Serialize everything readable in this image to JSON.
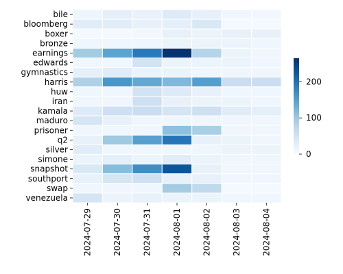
{
  "chart_data": {
    "type": "heatmap",
    "title": "",
    "xlabel": "",
    "ylabel": "",
    "rows": [
      "bile",
      "bloomberg",
      "boxer",
      "bronze",
      "earnings",
      "edwards",
      "gymnastics",
      "harris",
      "huw",
      "iran",
      "kamala",
      "maduro",
      "prisoner",
      "q2",
      "silver",
      "simone",
      "snapshot",
      "southport",
      "swap",
      "venezuela"
    ],
    "columns": [
      "2024-07-29",
      "2024-07-30",
      "2024-07-31",
      "2024-08-01",
      "2024-08-02",
      "2024-08-03",
      "2024-08-04"
    ],
    "values": [
      [
        12,
        25,
        18,
        35,
        22,
        10,
        8
      ],
      [
        30,
        30,
        20,
        25,
        40,
        5,
        5
      ],
      [
        5,
        5,
        8,
        20,
        15,
        20,
        20
      ],
      [
        10,
        10,
        10,
        15,
        15,
        15,
        10
      ],
      [
        95,
        145,
        190,
        262,
        80,
        15,
        10
      ],
      [
        10,
        10,
        50,
        15,
        15,
        15,
        10
      ],
      [
        22,
        30,
        15,
        15,
        10,
        10,
        10
      ],
      [
        85,
        160,
        140,
        120,
        150,
        60,
        60
      ],
      [
        10,
        10,
        50,
        35,
        20,
        10,
        10
      ],
      [
        10,
        10,
        55,
        20,
        15,
        15,
        10
      ],
      [
        35,
        55,
        60,
        45,
        55,
        30,
        25
      ],
      [
        45,
        20,
        10,
        10,
        10,
        10,
        10
      ],
      [
        10,
        10,
        10,
        110,
        90,
        10,
        10
      ],
      [
        20,
        100,
        150,
        195,
        20,
        15,
        10
      ],
      [
        30,
        10,
        10,
        10,
        10,
        15,
        15
      ],
      [
        15,
        25,
        15,
        30,
        15,
        10,
        10
      ],
      [
        40,
        115,
        170,
        228,
        20,
        10,
        10
      ],
      [
        20,
        45,
        55,
        20,
        20,
        10,
        10
      ],
      [
        10,
        10,
        10,
        95,
        70,
        5,
        5
      ],
      [
        45,
        15,
        20,
        15,
        15,
        10,
        10
      ]
    ],
    "colorbar": {
      "min": 0,
      "max": 265,
      "ticks": [
        0,
        100,
        200
      ],
      "colormap": "Blues"
    },
    "grid": false,
    "cell_separator_color": "#ffffff"
  }
}
